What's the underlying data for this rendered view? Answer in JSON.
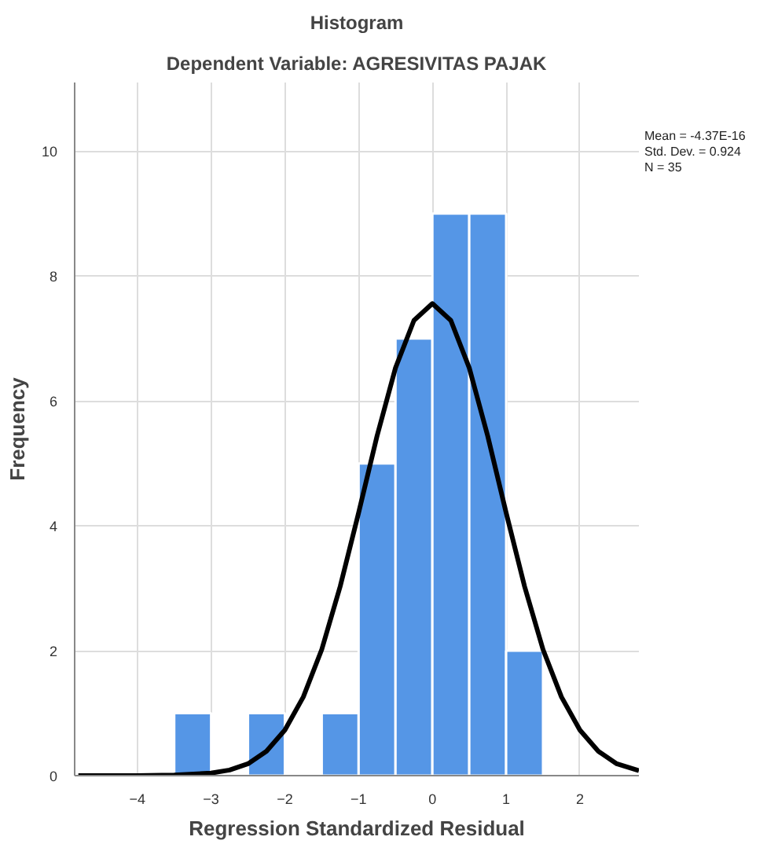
{
  "chart_data": {
    "type": "histogram",
    "title": "Histogram",
    "subtitle": "Dependent Variable: AGRESIVITAS PAJAK",
    "xlabel": "Regression Standardized Residual",
    "ylabel": "Frequency",
    "series": [
      {
        "bins": [
          -3.5,
          -3,
          -2.5,
          -2,
          -1.5,
          -1,
          -0.5,
          0,
          0.5,
          1,
          1.5
        ],
        "values": [
          1,
          0,
          1,
          0,
          1,
          5,
          7,
          9,
          9,
          2
        ],
        "color": "#5596e6"
      },
      {
        "type": "line",
        "color": "#000000",
        "x": [
          -4.8,
          -4,
          -3.5,
          -3,
          -2.75,
          -2.5,
          -2.25,
          -2,
          -1.75,
          -1.5,
          -1.25,
          -1,
          -0.75,
          -0.5,
          -0.25,
          0,
          0.25,
          0.5,
          0.75,
          1,
          1.25,
          1.5,
          1.75,
          2,
          2.25,
          2.5,
          2.8
        ],
        "values": [
          0,
          0,
          0.01,
          0.04,
          0.09,
          0.19,
          0.39,
          0.73,
          1.26,
          2.02,
          3.03,
          4.21,
          5.44,
          6.53,
          7.29,
          7.56,
          7.29,
          6.53,
          5.44,
          4.21,
          3.03,
          2.02,
          1.26,
          0.73,
          0.39,
          0.19,
          0.08
        ]
      }
    ],
    "xlim": [
      -4.85,
      2.8
    ],
    "ylim": [
      0,
      11.1
    ],
    "xticks": [
      -4,
      -3,
      -2,
      -1,
      0,
      1,
      2
    ],
    "yticks": [
      0,
      2,
      4,
      6,
      8,
      10
    ],
    "grid": true,
    "annotations": [
      "Mean = -4.37E-16",
      "Std. Dev. = 0.924",
      "N = 35"
    ]
  }
}
